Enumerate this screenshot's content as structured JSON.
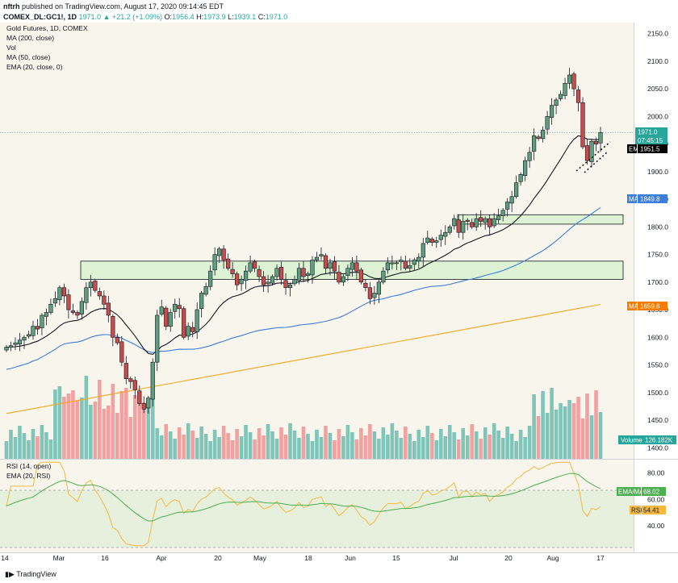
{
  "header": {
    "publisher": "nftrh",
    "published_text": " published on TradingView.com, August 17, 2020 09:14:45 EDT",
    "symbol": "COMEX_DL:GC1!, 1D",
    "last": "1971.0",
    "change": "▲ +21.2 (+1.09%)",
    "o_label": "O:",
    "o_val": "1956.4",
    "h_label": "H:",
    "h_val": "1973.9",
    "l_label": "L:",
    "l_val": "1939.1",
    "c_label": "C:",
    "c_val": "1971.0"
  },
  "legend": {
    "main": [
      "Gold Futures, 1D, COMEX",
      "MA (200, close)",
      "Vol",
      "MA (50, close)",
      "EMA (20, close, 0)"
    ],
    "rsi": [
      "RSI (14, open)",
      "EMA (20, RSI)"
    ]
  },
  "tags": {
    "last": "1971.0",
    "countdown": "07:45:15",
    "ema": "EMA",
    "ema_val": "1951.5",
    "ma50": "MA",
    "ma50_val": "1849.8",
    "ma200": "MA",
    "ma200_val": "1659.6",
    "volume": "Volume",
    "volume_val": "126.182K",
    "rsi_ema": "EMA/MA",
    "rsi_ema_val": "68.02",
    "rsi": "RSI",
    "rsi_val": "54.41"
  },
  "footer": {
    "brand": "TradingView"
  },
  "colors": {
    "up": "#26a69a",
    "down": "#ef5350",
    "body_up": "#5e9e7e",
    "body_down": "#c94b4b",
    "vol_up": "#7fc5b9",
    "vol_down": "#f2a0a0",
    "ema": "#131722",
    "ma50": "#3d7ddb",
    "ma200": "#f5a623",
    "rsi": "#f5b940",
    "rsi_ema": "#4caf50",
    "pane_bg": "#f8f5ec",
    "box": "#c9f0c0"
  },
  "chart_data": [
    {
      "type": "candlestick",
      "title": "Gold Futures, 1D, COMEX",
      "ylim": [
        1380,
        2170
      ],
      "y_ticks": [
        1400,
        1450,
        1500,
        1550,
        1600,
        1650,
        1700,
        1750,
        1800,
        1850,
        1900,
        1950,
        2000,
        2050,
        2100,
        2150
      ],
      "x_tick_labels": [
        "14",
        "Mar",
        "16",
        "Apr",
        "20",
        "May",
        "18",
        "Jun",
        "15",
        "Jul",
        "20",
        "Aug",
        "17"
      ],
      "closes": [
        1582,
        1585,
        1590,
        1595,
        1600,
        1605,
        1620,
        1615,
        1640,
        1645,
        1660,
        1670,
        1690,
        1675,
        1650,
        1645,
        1640,
        1665,
        1690,
        1700,
        1685,
        1675,
        1660,
        1640,
        1600,
        1590,
        1555,
        1525,
        1520,
        1505,
        1480,
        1470,
        1490,
        1555,
        1640,
        1655,
        1620,
        1645,
        1660,
        1652,
        1600,
        1620,
        1610,
        1650,
        1680,
        1692,
        1720,
        1750,
        1760,
        1740,
        1725,
        1715,
        1695,
        1705,
        1720,
        1735,
        1725,
        1710,
        1695,
        1700,
        1710,
        1725,
        1705,
        1690,
        1695,
        1705,
        1725,
        1710,
        1715,
        1740,
        1745,
        1750,
        1725,
        1735,
        1720,
        1700,
        1710,
        1725,
        1735,
        1720,
        1700,
        1690,
        1670,
        1680,
        1700,
        1720,
        1735,
        1735,
        1735,
        1740,
        1725,
        1730,
        1740,
        1745,
        1770,
        1780,
        1772,
        1775,
        1785,
        1790,
        1800,
        1815,
        1790,
        1810,
        1810,
        1800,
        1815,
        1810,
        1815,
        1800,
        1815,
        1820,
        1830,
        1845,
        1855,
        1880,
        1895,
        1920,
        1935,
        1965,
        1960,
        1975,
        2000,
        2020,
        2030,
        2040,
        2060,
        2075,
        2050,
        2025,
        1945,
        1920,
        1955,
        1950,
        1971
      ],
      "ema20_last": 1951.5,
      "ma50_last": 1849.8,
      "ma200_last": 1659.6,
      "zones": [
        {
          "y": [
            1705,
            1738
          ],
          "x_range": [
            "Mar",
            "Aug 17"
          ]
        },
        {
          "y": [
            1805,
            1822
          ],
          "x_range": [
            "Jul",
            "Aug 17"
          ]
        }
      ],
      "volume_last": "126.182K"
    },
    {
      "type": "line",
      "title": "RSI (14, open)",
      "ylim": [
        20,
        90
      ],
      "y_ticks": [
        40,
        60,
        80
      ],
      "bands": [
        30,
        70
      ],
      "rsi_last": 54.41,
      "rsi_ema_last": 68.02
    }
  ]
}
